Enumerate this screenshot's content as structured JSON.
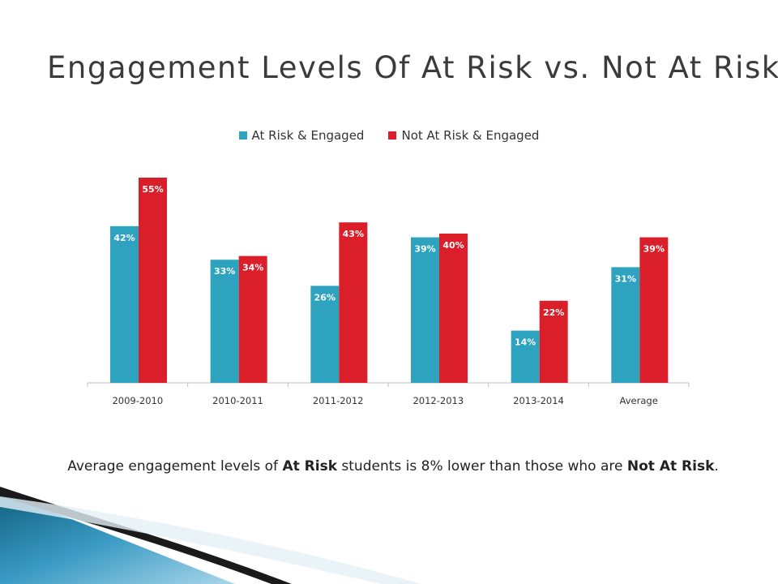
{
  "title": "Engagement Levels Of At Risk vs. Not At Risk",
  "caption": {
    "text1": "Average engagement levels of ",
    "bold1": "At Risk",
    "text2": " students is 8% lower than those who are ",
    "bold2": "Not At Risk",
    "text3": "."
  },
  "colors": {
    "at_risk": "#2ea3bf",
    "not_at_risk": "#da1f2a",
    "axis": "#bfbfbf"
  },
  "chart_data": {
    "type": "bar",
    "title": "",
    "xlabel": "",
    "ylabel": "",
    "ylim": [
      0,
      60
    ],
    "grid": false,
    "legend_position": "top",
    "categories": [
      "2009-2010",
      "2010-2011",
      "2011-2012",
      "2012-2013",
      "2013-2014",
      "Average"
    ],
    "series": [
      {
        "name": "At Risk & Engaged",
        "values": [
          42,
          33,
          26,
          39,
          14,
          31
        ],
        "labels": [
          "42%",
          "33%",
          "26%",
          "39%",
          "14%",
          "31%"
        ]
      },
      {
        "name": "Not At Risk & Engaged",
        "values": [
          55,
          34,
          43,
          40,
          22,
          39
        ],
        "labels": [
          "55%",
          "34%",
          "43%",
          "40%",
          "22%",
          "39%"
        ]
      }
    ]
  }
}
